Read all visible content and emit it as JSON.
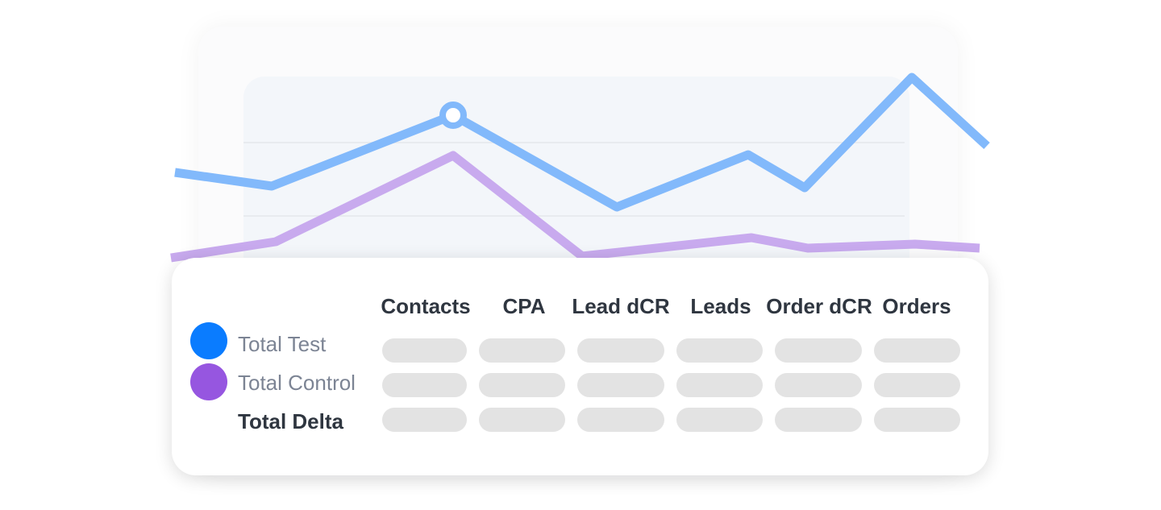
{
  "table": {
    "columns": [
      "Contacts",
      "CPA",
      "Lead dCR",
      "Leads",
      "Order dCR",
      "Orders"
    ],
    "rows": [
      {
        "label": "Total Test",
        "color": "#0a7cff"
      },
      {
        "label": "Total Control",
        "color": "#9656e0"
      },
      {
        "label": "Total Delta"
      }
    ]
  },
  "chart": {
    "series": [
      {
        "color": "#82b9fb"
      },
      {
        "color": "#c8aaee"
      }
    ]
  }
}
